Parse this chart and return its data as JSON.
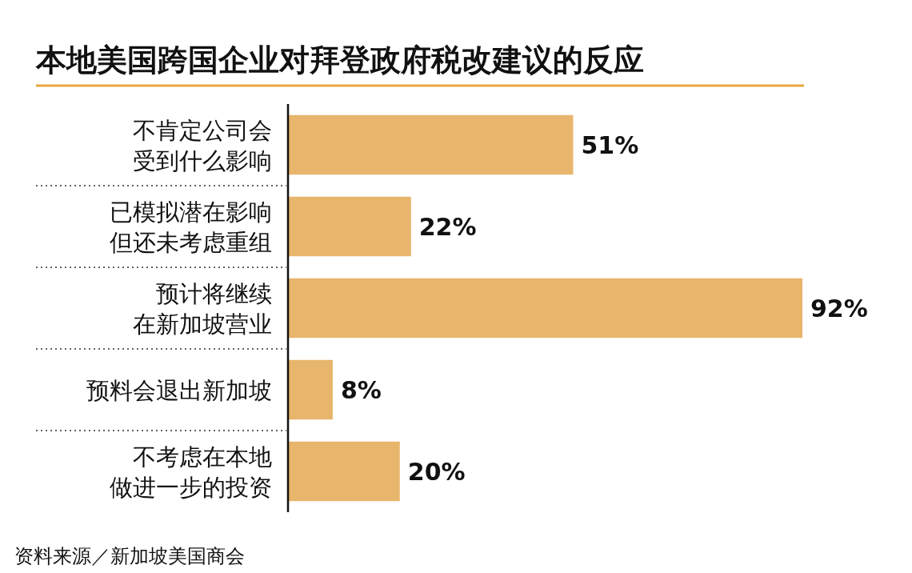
{
  "chart_data": {
    "type": "bar",
    "orientation": "horizontal",
    "title": "本地美国跨国企业对拜登政府税改建议的反应",
    "categories": [
      "不肯定公司会受到什么影响",
      "已模拟潜在影响但还未考虑重组",
      "预计将继续在新加坡营业",
      "预料会退出新加坡",
      "不考虑在本地做进一步的投资"
    ],
    "values": [
      51,
      22,
      92,
      8,
      20
    ],
    "value_labels": [
      "51%",
      "22%",
      "92%",
      "8%",
      "20%"
    ],
    "color": "#e8b56c",
    "annotations": [
      "资料来源／新加坡美国商会"
    ]
  }
}
